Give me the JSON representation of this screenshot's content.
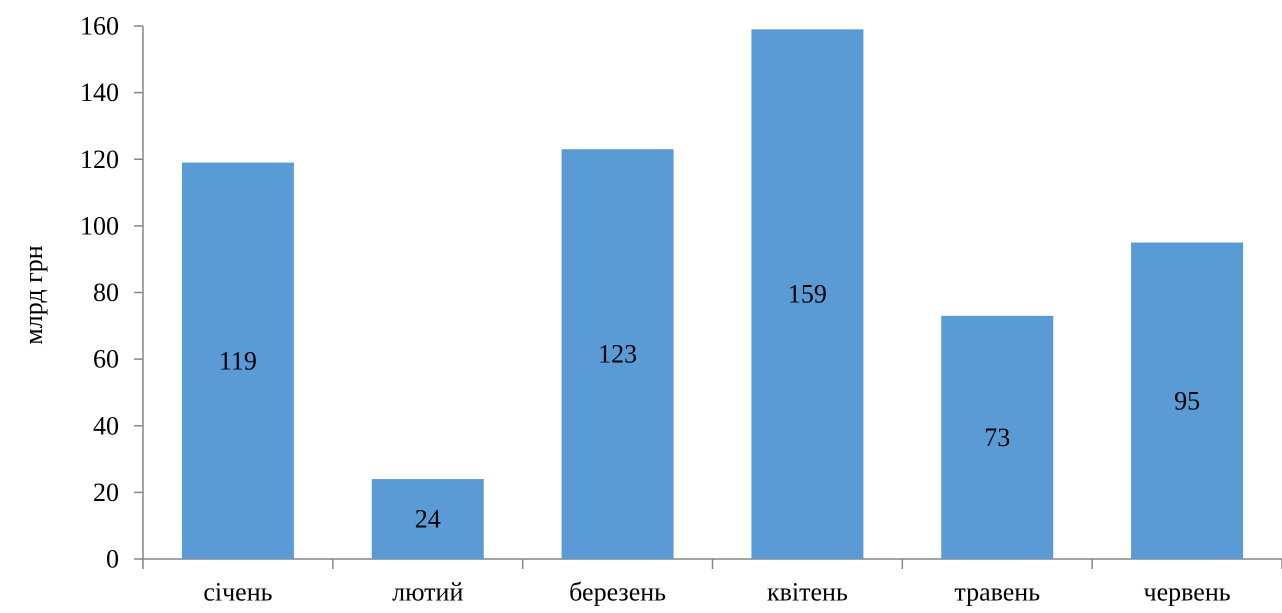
{
  "chart_data": {
    "type": "bar",
    "title": "",
    "xlabel": "",
    "ylabel": "млрд грн",
    "categories": [
      "січень",
      "лютий",
      "березень",
      "квітень",
      "травень",
      "червень"
    ],
    "values": [
      119,
      24,
      123,
      159,
      73,
      95
    ],
    "data_labels": [
      "119",
      "24",
      "123",
      "159",
      "73",
      "95"
    ],
    "ylim": [
      0,
      160
    ],
    "yticks": [
      0,
      20,
      40,
      60,
      80,
      100,
      120,
      140,
      160
    ],
    "grid": false,
    "legend": "none",
    "bar_color": "#5B9BD5",
    "axis_color": "#868686"
  }
}
